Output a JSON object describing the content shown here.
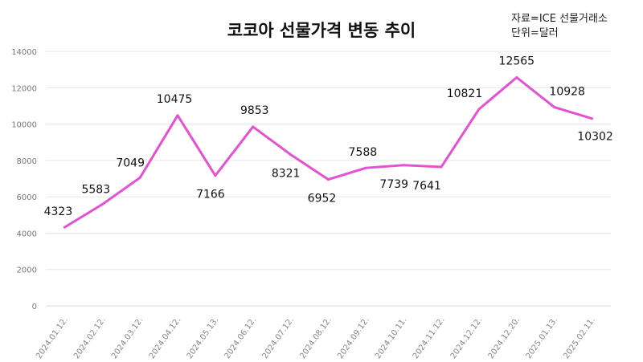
{
  "chart_data": {
    "type": "line",
    "title": "코코아 선물가격 변동 추이",
    "annotations": [
      "자료=ICE 선물거래소",
      "단위=달러"
    ],
    "xlabel": "",
    "ylabel": "",
    "ylim": [
      0,
      14000
    ],
    "yticks": [
      0,
      2000,
      4000,
      6000,
      8000,
      10000,
      12000,
      14000
    ],
    "grid": true,
    "legend": "none",
    "line_color": "#e650d2",
    "highlight_color": "#e03030",
    "categories": [
      "2024.01.12.",
      "2024.02.12.",
      "2024.03.12.",
      "2024.04.12.",
      "2024.05.13.",
      "2024.06.12.",
      "2024.07.12.",
      "2024.08.12.",
      "2024.09.12.",
      "2024.10.11.",
      "2024.11.12.",
      "2024.12.12.",
      "2024.12.20.",
      "2025.01.13.",
      "2025.02.11."
    ],
    "values": [
      4323,
      5583,
      7049,
      10475,
      7166,
      9853,
      8321,
      6952,
      7588,
      7739,
      7641,
      10821,
      12565,
      10928,
      10302
    ],
    "highlight_index": 12
  }
}
